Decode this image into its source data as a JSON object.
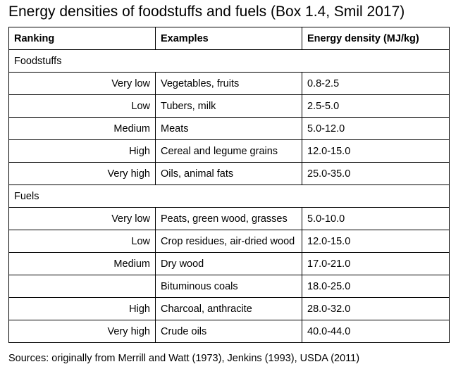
{
  "title": "Energy densities of foodstuffs and fuels (Box 1.4, Smil 2017)",
  "table": {
    "headers": [
      "Ranking",
      "Examples",
      "Energy density (MJ/kg)"
    ],
    "groups": [
      {
        "label": "Foodstuffs",
        "rows": [
          {
            "ranking": "Very low",
            "example": "Vegetables, fruits",
            "density": "0.8-2.5"
          },
          {
            "ranking": "Low",
            "example": "Tubers, milk",
            "density": "2.5-5.0"
          },
          {
            "ranking": "Medium",
            "example": "Meats",
            "density": "5.0-12.0"
          },
          {
            "ranking": "High",
            "example": "Cereal and legume grains",
            "density": "12.0-15.0"
          },
          {
            "ranking": "Very high",
            "example": "Oils, animal fats",
            "density": "25.0-35.0"
          }
        ]
      },
      {
        "label": "Fuels",
        "rows": [
          {
            "ranking": "Very low",
            "example": "Peats, green wood, grasses",
            "density": "5.0-10.0"
          },
          {
            "ranking": "Low",
            "example": "Crop residues, air-dried wood",
            "density": "12.0-15.0"
          },
          {
            "ranking": "Medium",
            "example": "Dry wood",
            "density": "17.0-21.0"
          },
          {
            "ranking": "",
            "example": "Bituminous coals",
            "density": "18.0-25.0"
          },
          {
            "ranking": "High",
            "example": "Charcoal, anthracite",
            "density": "28.0-32.0"
          },
          {
            "ranking": "Very high",
            "example": "Crude oils",
            "density": "40.0-44.0"
          }
        ]
      }
    ]
  },
  "sources": "Sources: originally from Merrill and Watt (1973), Jenkins (1993), USDA (2011)"
}
